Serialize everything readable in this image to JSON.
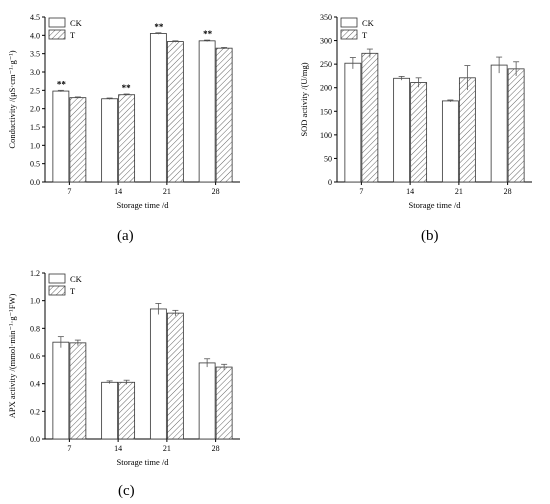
{
  "panel_labels": [
    "(a)",
    "(b)",
    "(c)"
  ],
  "chart_data": [
    {
      "type": "bar",
      "panel": "a",
      "categories": [
        "7",
        "14",
        "21",
        "28"
      ],
      "series": [
        {
          "name": "CK",
          "values": [
            2.48,
            2.27,
            4.05,
            3.85
          ],
          "errors": [
            0.02,
            0.02,
            0.02,
            0.02
          ]
        },
        {
          "name": "T",
          "values": [
            2.3,
            2.38,
            3.83,
            3.65
          ],
          "errors": [
            0.02,
            0.02,
            0.02,
            0.02
          ]
        }
      ],
      "significance": [
        {
          "category": "7",
          "series": "CK",
          "text": "**"
        },
        {
          "category": "14",
          "series": "T",
          "text": "**"
        },
        {
          "category": "21",
          "series": "CK",
          "text": "**"
        },
        {
          "category": "28",
          "series": "CK",
          "text": "**"
        }
      ],
      "title": "",
      "xlabel": "Storage time /d",
      "ylabel": "Conductivity /(μS·cm⁻¹·g⁻¹)",
      "ylim": [
        0,
        4.5
      ],
      "yticks": [
        "0.0",
        "0.5",
        "1.0",
        "1.5",
        "2.0",
        "2.5",
        "3.0",
        "3.5",
        "4.0",
        "4.5"
      ],
      "legend": "top-left",
      "grid": false
    },
    {
      "type": "bar",
      "panel": "b",
      "categories": [
        "7",
        "14",
        "21",
        "28"
      ],
      "series": [
        {
          "name": "CK",
          "values": [
            252,
            220,
            172,
            248
          ],
          "errors": [
            12,
            4,
            2,
            17
          ]
        },
        {
          "name": "T",
          "values": [
            273,
            211,
            221,
            240
          ],
          "errors": [
            9,
            10,
            26,
            15
          ]
        }
      ],
      "title": "",
      "xlabel": "Storage time /d",
      "ylabel": "SOD activity /(U/mg)",
      "ylim": [
        0,
        350
      ],
      "yticks": [
        "0",
        "50",
        "100",
        "150",
        "200",
        "250",
        "300",
        "350"
      ],
      "legend": "top-left",
      "grid": false
    },
    {
      "type": "bar",
      "panel": "c",
      "categories": [
        "7",
        "14",
        "21",
        "28"
      ],
      "series": [
        {
          "name": "CK",
          "values": [
            0.7,
            0.41,
            0.94,
            0.55
          ],
          "errors": [
            0.04,
            0.01,
            0.04,
            0.03
          ]
        },
        {
          "name": "T",
          "values": [
            0.695,
            0.41,
            0.91,
            0.52
          ],
          "errors": [
            0.02,
            0.015,
            0.02,
            0.02
          ]
        }
      ],
      "title": "",
      "xlabel": "Storage time /d",
      "ylabel": "APX activity /(mmol·min⁻¹·g⁻¹FW)",
      "ylim": [
        0,
        1.2
      ],
      "yticks": [
        "0.0",
        "0.2",
        "0.4",
        "0.6",
        "0.8",
        "1.0",
        "1.2"
      ],
      "legend": "top-left",
      "grid": false
    }
  ]
}
